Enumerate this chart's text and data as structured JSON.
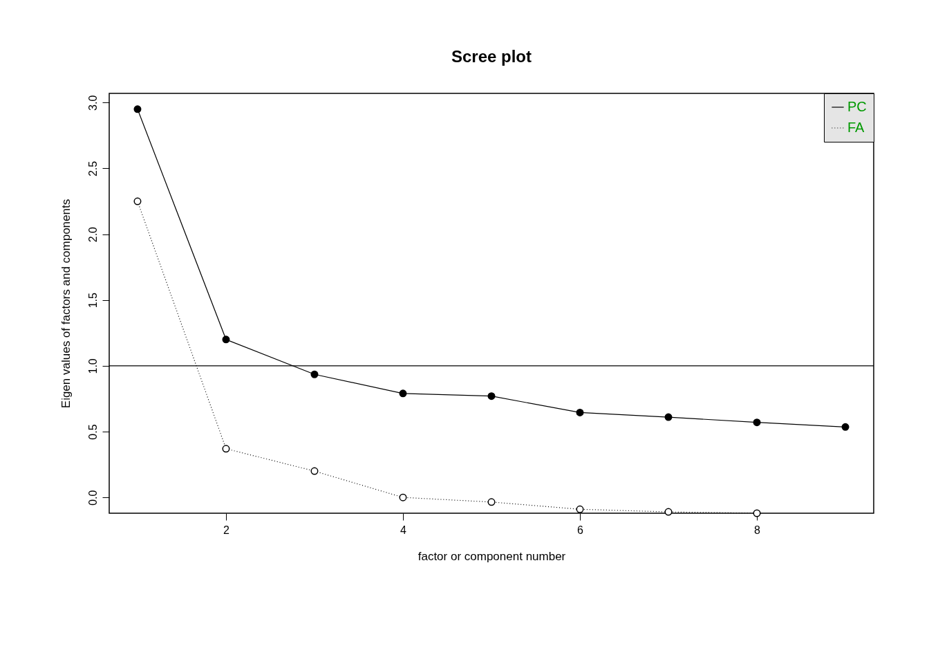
{
  "chart_data": {
    "type": "line",
    "title": "Scree plot",
    "xlabel": "factor or component number",
    "ylabel": "Eigen values of factors and components",
    "x": [
      1,
      2,
      3,
      4,
      5,
      6,
      7,
      8,
      9
    ],
    "series": [
      {
        "name": "PC",
        "color": "#000000",
        "line_style": "solid",
        "marker": "circle",
        "values": [
          2.95,
          1.2,
          0.935,
          0.79,
          0.77,
          0.645,
          0.61,
          0.57,
          0.535
        ]
      },
      {
        "name": "FA",
        "color": "#000000",
        "line_style": "dotted",
        "marker": "circle",
        "values": [
          2.25,
          0.37,
          0.2,
          0.0,
          -0.035,
          -0.09,
          -0.11,
          -0.12,
          null
        ]
      }
    ],
    "xlim": [
      0.68,
      9.32
    ],
    "xticks": [
      2,
      4,
      6,
      8
    ],
    "ylim": [
      -0.12,
      3.07
    ],
    "yticks": [
      {
        "value": 0,
        "label": "0.0"
      },
      {
        "value": 0.5,
        "label": "0.5"
      },
      {
        "value": 1,
        "label": "1.0"
      },
      {
        "value": 1.5,
        "label": "1.5"
      },
      {
        "value": 2,
        "label": "2.0"
      },
      {
        "value": 2.5,
        "label": "2.5"
      },
      {
        "value": 3,
        "label": "3.0"
      }
    ],
    "ref_lines": [
      {
        "axis": "y",
        "value": 1,
        "color": "#000000"
      }
    ],
    "grid": false,
    "legend": "top right"
  }
}
